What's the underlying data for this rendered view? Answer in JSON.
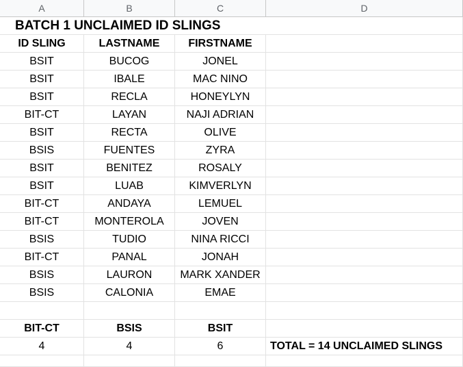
{
  "columns": [
    "A",
    "B",
    "C",
    "D"
  ],
  "title": "BATCH 1 UNCLAIMED ID SLINGS",
  "headers": [
    "ID SLING",
    "LASTNAME",
    "FIRSTNAME"
  ],
  "rows": [
    [
      "BSIT",
      "BUCOG",
      "JONEL"
    ],
    [
      "BSIT",
      "IBALE",
      "MAC NINO"
    ],
    [
      "BSIT",
      "RECLA",
      "HONEYLYN"
    ],
    [
      "BIT-CT",
      "LAYAN",
      "NAJI ADRIAN"
    ],
    [
      "BSIT",
      "RECTA",
      "OLIVE"
    ],
    [
      "BSIS",
      "FUENTES",
      "ZYRA"
    ],
    [
      "BSIT",
      "BENITEZ",
      "ROSALY"
    ],
    [
      "BSIT",
      "LUAB",
      "KIMVERLYN"
    ],
    [
      "BIT-CT",
      "ANDAYA",
      "LEMUEL"
    ],
    [
      "BIT-CT",
      "MONTEROLA",
      "JOVEN"
    ],
    [
      "BSIS",
      "TUDIO",
      "NINA RICCI"
    ],
    [
      "BIT-CT",
      "PANAL",
      "JONAH"
    ],
    [
      "BSIS",
      "LAURON",
      "MARK XANDER"
    ],
    [
      "BSIS",
      "CALONIA",
      "EMAE"
    ]
  ],
  "summary": {
    "labels": [
      "BIT-CT",
      "BSIS",
      "BSIT"
    ],
    "counts": [
      "4",
      "4",
      "6"
    ],
    "total": "TOTAL = 14 UNCLAIMED SLINGS"
  }
}
